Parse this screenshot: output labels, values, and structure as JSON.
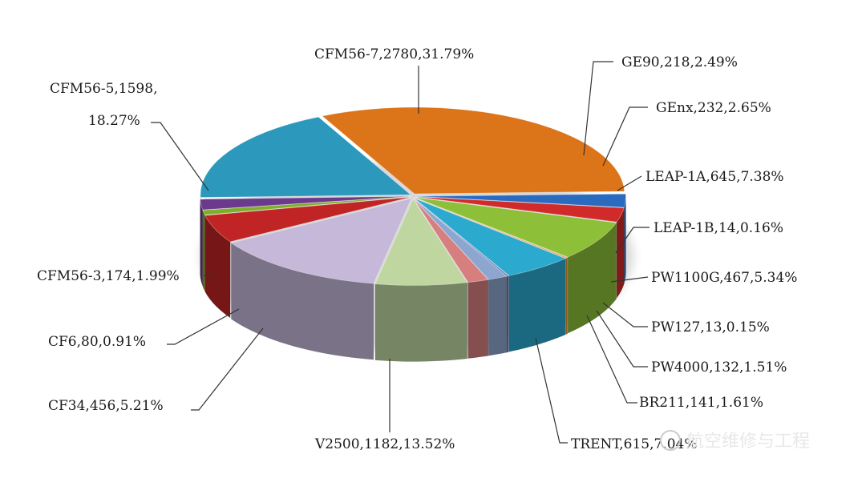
{
  "chart_data": {
    "type": "pie",
    "title": "",
    "slices": [
      {
        "engine": "CFM56-7",
        "count": 2780,
        "percent": "31.79%",
        "label": "CFM56-7,2780,31.79%",
        "color": "#DC7419"
      },
      {
        "engine": "GE90",
        "count": 218,
        "percent": "2.49%",
        "label": "GE90,218,2.49%",
        "color": "#2A6BC0"
      },
      {
        "engine": "GEnx",
        "count": 232,
        "percent": "2.65%",
        "label": "GEnx,232,2.65%",
        "color": "#D12A2A"
      },
      {
        "engine": "LEAP-1A",
        "count": 645,
        "percent": "7.38%",
        "label": "LEAP-1A,645,7.38%",
        "color": "#8DBF38"
      },
      {
        "engine": "LEAP-1B",
        "count": 14,
        "percent": "0.16%",
        "label": "LEAP-1B,14,0.16%",
        "color": "#E58F2C"
      },
      {
        "engine": "PW1100G",
        "count": 467,
        "percent": "5.34%",
        "label": "PW1100G,467,5.34%",
        "color": "#2CA9CE"
      },
      {
        "engine": "PW127",
        "count": 13,
        "percent": "0.15%",
        "label": "PW127,13,0.15%",
        "color": "#5E6FB0"
      },
      {
        "engine": "PW4000",
        "count": 132,
        "percent": "1.51%",
        "label": "PW4000,132,1.51%",
        "color": "#8CA6CF"
      },
      {
        "engine": "BR211",
        "count": 141,
        "percent": "1.61%",
        "label": "BR211,141,1.61%",
        "color": "#D77F7F"
      },
      {
        "engine": "TRENT",
        "count": 615,
        "percent": "7.04%",
        "label": "TRENT,615,7.04%",
        "color": "#BFD6A0"
      },
      {
        "engine": "V2500",
        "count": 1182,
        "percent": "13.52%",
        "label": "V2500,1182,13.52%",
        "color": "#C5B8D8"
      },
      {
        "engine": "CF34",
        "count": 456,
        "percent": "5.21%",
        "label": "CF34,456,5.21%",
        "color": "#C02424"
      },
      {
        "engine": "CF6",
        "count": 80,
        "percent": "0.91%",
        "label": "CF6,80,0.91%",
        "color": "#7FAE2A"
      },
      {
        "engine": "CFM56-3",
        "count": 174,
        "percent": "1.99%",
        "label": "CFM56-3,174,1.99%",
        "color": "#6B3A8C"
      },
      {
        "engine": "CFM56-5",
        "count": 1598,
        "percent": "18.27%",
        "label_line1": "CFM56-5,1598,",
        "label_line2": "18.27%",
        "color": "#2C98BC"
      }
    ],
    "legend": "none"
  },
  "watermark": "航空维修与工程"
}
